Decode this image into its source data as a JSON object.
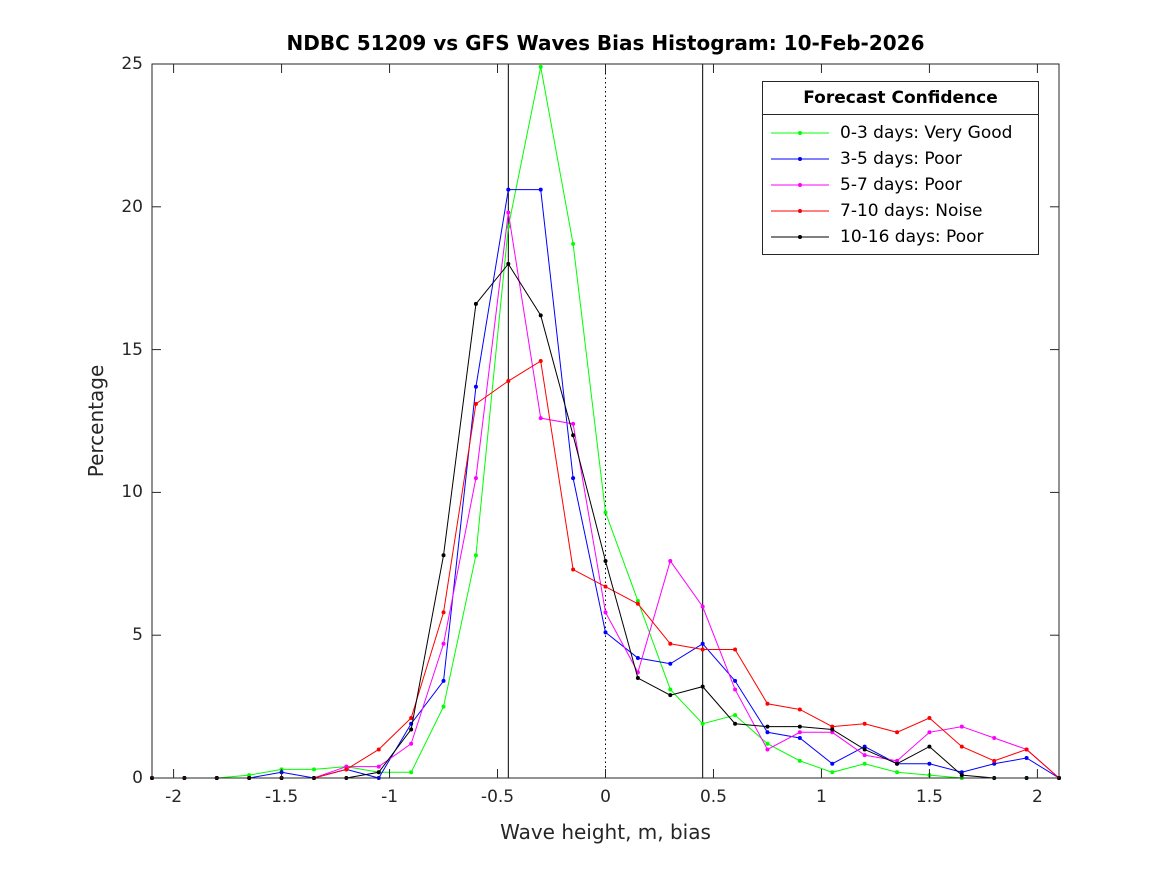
{
  "chart_data": {
    "type": "line",
    "title": "NDBC 51209 vs GFS Waves Bias Histogram: 10-Feb-2026",
    "xlabel": "Wave height, m, bias",
    "ylabel": "Percentage",
    "xlim": [
      -2.1,
      2.1
    ],
    "ylim": [
      0,
      25
    ],
    "xticks": [
      -2,
      -1.5,
      -1,
      -0.5,
      0,
      0.5,
      1,
      1.5,
      2
    ],
    "xtick_labels": [
      "-2",
      "-1.5",
      "-1",
      "-0.5",
      "0",
      "0.5",
      "1",
      "1.5",
      "2"
    ],
    "yticks": [
      0,
      5,
      10,
      15,
      20,
      25
    ],
    "ytick_labels": [
      "0",
      "5",
      "10",
      "15",
      "20",
      "25"
    ],
    "vlines": [
      {
        "x": -0.45,
        "style": "solid"
      },
      {
        "x": 0,
        "style": "dotted"
      },
      {
        "x": 0.45,
        "style": "solid"
      }
    ],
    "legend_title": "Forecast Confidence",
    "legend_location": "top-right",
    "x": [
      -2.1,
      -1.95,
      -1.8,
      -1.65,
      -1.5,
      -1.35,
      -1.2,
      -1.05,
      -0.9,
      -0.75,
      -0.6,
      -0.45,
      -0.3,
      -0.15,
      0,
      0.15,
      0.3,
      0.45,
      0.6,
      0.75,
      0.9,
      1.05,
      1.2,
      1.35,
      1.5,
      1.65,
      1.8,
      1.95,
      2.1
    ],
    "series": [
      {
        "name": "0-3 days: Very Good",
        "color": "#00ff00",
        "values": [
          0,
          0,
          0,
          0.1,
          0.3,
          0.3,
          0.4,
          0.2,
          0.2,
          2.5,
          7.8,
          19.3,
          24.9,
          18.7,
          9.3,
          6.2,
          3.1,
          1.9,
          2.2,
          1.2,
          0.6,
          0.2,
          0.5,
          0.2,
          0.1,
          0,
          0,
          0,
          0
        ]
      },
      {
        "name": "3-5 days: Poor",
        "color": "#0000ff",
        "values": [
          0,
          0,
          0,
          0,
          0.2,
          0,
          0.3,
          0,
          1.9,
          3.4,
          13.7,
          20.6,
          20.6,
          10.5,
          5.1,
          4.2,
          4.0,
          4.7,
          3.4,
          1.6,
          1.4,
          0.5,
          1.1,
          0.5,
          0.5,
          0.2,
          0.5,
          0.7,
          0
        ]
      },
      {
        "name": "5-7 days: Poor",
        "color": "#ff00ff",
        "values": [
          0,
          0,
          0,
          0,
          0,
          0,
          0.4,
          0.4,
          1.2,
          4.7,
          10.5,
          19.8,
          12.6,
          12.4,
          5.8,
          3.7,
          7.6,
          6.0,
          3.1,
          1.0,
          1.6,
          1.6,
          0.8,
          0.6,
          1.6,
          1.8,
          1.4,
          1.0,
          0
        ]
      },
      {
        "name": "7-10 days: Noise",
        "color": "#ff0000",
        "values": [
          0,
          0,
          0,
          0,
          0,
          0,
          0.3,
          1.0,
          2.1,
          5.8,
          13.1,
          13.9,
          14.6,
          7.3,
          6.7,
          6.1,
          4.7,
          4.5,
          4.5,
          2.6,
          2.4,
          1.8,
          1.9,
          1.6,
          2.1,
          1.1,
          0.6,
          1.0,
          0
        ]
      },
      {
        "name": "10-16 days: Poor",
        "color": "#000000",
        "values": [
          0,
          0,
          0,
          0,
          0,
          0,
          0,
          0.2,
          1.7,
          7.8,
          16.6,
          18.0,
          16.2,
          12.0,
          7.6,
          3.5,
          2.9,
          3.2,
          1.9,
          1.8,
          1.8,
          1.7,
          1.0,
          0.5,
          1.1,
          0.1,
          0,
          0,
          0
        ]
      }
    ]
  }
}
